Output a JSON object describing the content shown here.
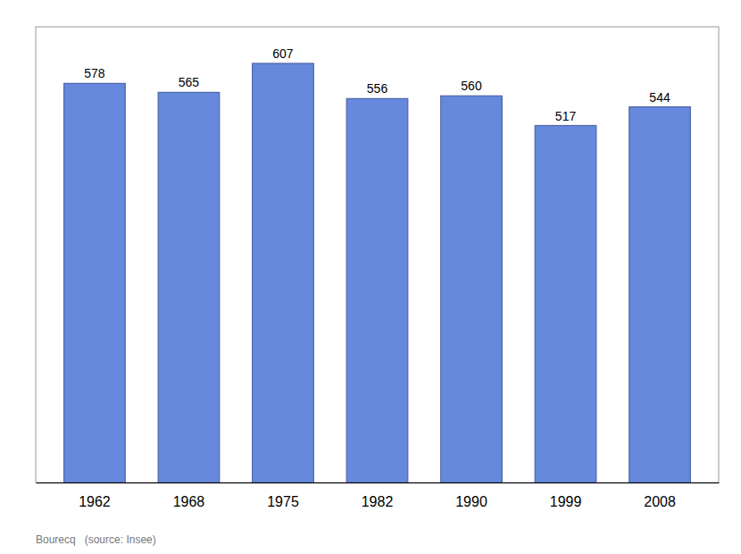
{
  "chart_data": {
    "type": "bar",
    "categories": [
      "1962",
      "1968",
      "1975",
      "1982",
      "1990",
      "1999",
      "2008"
    ],
    "values": [
      578,
      565,
      607,
      556,
      560,
      517,
      544
    ],
    "color": "#6688DD",
    "ylim": [
      0,
      660
    ],
    "data_labels": true,
    "tick_labels": "x",
    "annotations": [
      "Bourecq   (source: Insee)"
    ]
  }
}
